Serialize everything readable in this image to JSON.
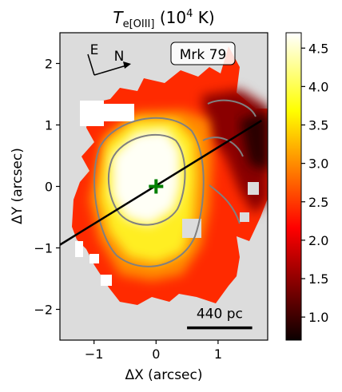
{
  "chart_data": {
    "type": "heatmap",
    "title_main": "T",
    "title_sub": "e[OIII]",
    "title_rest": " (10",
    "title_sup": "4",
    "title_end": " K)",
    "xlabel": "ΔX (arcsec)",
    "ylabel": "ΔY (arcsec)",
    "xlim": [
      -1.55,
      1.8
    ],
    "ylim": [
      -2.5,
      2.5
    ],
    "x_ticks": [
      -1,
      0,
      1
    ],
    "x_tick_labels": [
      "−1",
      "0",
      "1"
    ],
    "y_ticks": [
      -2,
      -1,
      0,
      1,
      2
    ],
    "y_tick_labels": [
      "−2",
      "−1",
      "0",
      "1",
      "2"
    ],
    "colorbar": {
      "range": [
        0.7,
        4.7
      ],
      "ticks": [
        1.0,
        1.5,
        2.0,
        2.5,
        3.0,
        3.5,
        4.0,
        4.5
      ],
      "tick_labels": [
        "1.0",
        "1.5",
        "2.0",
        "2.5",
        "3.0",
        "3.5",
        "4.0",
        "4.5"
      ],
      "colormap": "hot"
    },
    "object_label": "Mrk 79",
    "compass": {
      "east": "E",
      "north": "N"
    },
    "scale_bar_label": "440 pc",
    "scale_bar_x": [
      0.5,
      1.55
    ],
    "scale_bar_y": -2.3,
    "center_marker": {
      "x": 0,
      "y": 0,
      "color": "#008000"
    },
    "slit_line": {
      "x": [
        -1.55,
        1.7
      ],
      "y": [
        -0.95,
        1.07
      ]
    },
    "background_color": "#dcdcdc",
    "contour_color": "#808080"
  }
}
